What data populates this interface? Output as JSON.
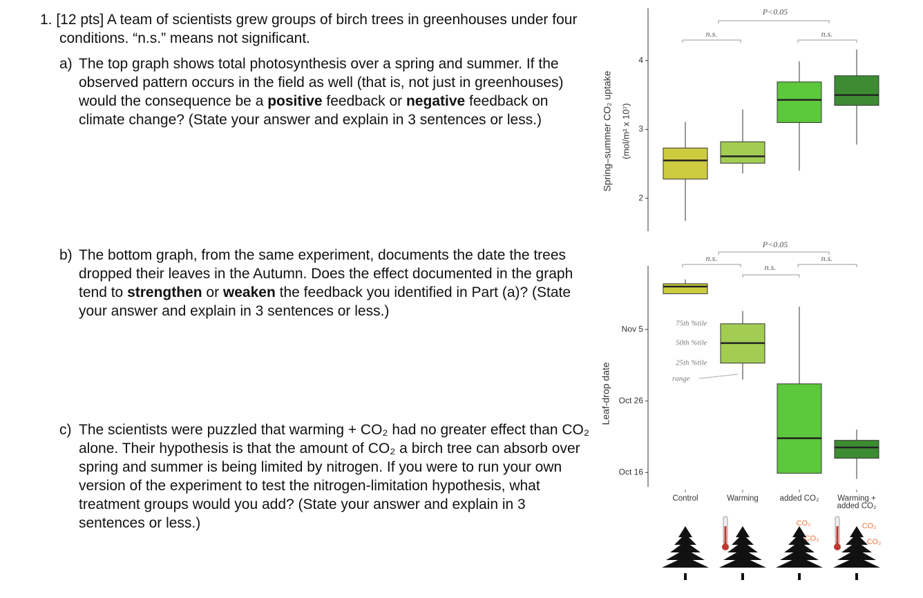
{
  "question": {
    "intro": "1. [12 pts] A team of scientists grew groups of birch trees in greenhouses under four conditions. “n.s.” means not significant.",
    "parts": [
      {
        "label": "a)",
        "segments": [
          {
            "text": "The top graph shows total photosynthesis over a spring and summer. If the observed pattern occurs in the field as well (that is, not just in greenhouses) would the consequence be a "
          },
          {
            "text": "positive",
            "bold": true
          },
          {
            "text": " feedback or "
          },
          {
            "text": "negative",
            "bold": true
          },
          {
            "text": " feedback on climate change? (State your answer and explain in 3 sentences or less.)"
          }
        ]
      },
      {
        "label": "b)",
        "segments": [
          {
            "text": "The bottom graph, from the same experiment, documents the date the trees dropped their leaves in the Autumn. Does the effect documented in the graph tend to "
          },
          {
            "text": "strengthen",
            "bold": true
          },
          {
            "text": " or "
          },
          {
            "text": "weaken",
            "bold": true
          },
          {
            "text": " the feedback you identified in Part (a)? (State your answer and explain in 3 sentences or less.)"
          }
        ]
      },
      {
        "label": "c)",
        "segments": [
          {
            "text": "The scientists were puzzled that warming + CO₂ had no greater effect than CO₂ alone. Their hypothesis is that the amount of CO₂ a birch tree can absorb over spring and summer is being limited by nitrogen. If you were to run your own version of the experiment to test the nitrogen-limitation hypothesis, what treatment groups would you add? (State your answer and explain in 3 sentences or less.)"
          }
        ]
      }
    ]
  },
  "chart_data": [
    {
      "type": "box",
      "ylabel": "Spring–summer CO₂ uptake",
      "ylabel2": "(mol/m² x 10⁷)",
      "ylim": [
        1.52,
        4.76
      ],
      "yticks": [
        2,
        3,
        4
      ],
      "colors": [
        "#cdcc3f",
        "#a3cc52",
        "#5cc83c",
        "#3d8c32"
      ],
      "boxes": [
        {
          "min": 1.67,
          "q1": 2.28,
          "median": 2.55,
          "q3": 2.73,
          "max": 3.11
        },
        {
          "min": 2.36,
          "q1": 2.51,
          "median": 2.61,
          "q3": 2.82,
          "max": 3.29
        },
        {
          "min": 2.4,
          "q1": 3.1,
          "median": 3.43,
          "q3": 3.69,
          "max": 3.99
        },
        {
          "min": 2.78,
          "q1": 3.35,
          "median": 3.5,
          "q3": 3.78,
          "max": 4.16
        }
      ],
      "annotations": [
        "P<0.05",
        "n.s.",
        "n.s."
      ]
    },
    {
      "type": "box",
      "ylabel": "Leaf-drop date",
      "ylim": [
        287.0,
        317.9
      ],
      "yticks": [
        {
          "value": 289,
          "label": "Oct 16"
        },
        {
          "value": 299,
          "label": "Oct 26"
        },
        {
          "value": 309,
          "label": "Nov 5"
        }
      ],
      "colors": [
        "#cdcc3f",
        "#a3cc52",
        "#5cc83c",
        "#3d8c32"
      ],
      "categories": [
        "Control",
        "Warming",
        "added CO₂",
        "Warming +\nadded CO₂"
      ],
      "boxes": [
        {
          "min": 314.0,
          "q1": 314.0,
          "median": 315.0,
          "q3": 315.4,
          "max": 316.0
        },
        {
          "min": 302.0,
          "q1": 304.3,
          "median": 307.1,
          "q3": 309.8,
          "max": 311.6
        },
        {
          "min": 288.9,
          "q1": 288.9,
          "median": 293.8,
          "q3": 301.4,
          "max": 312.2
        },
        {
          "min": 288.1,
          "q1": 291.0,
          "median": 292.5,
          "q3": 293.5,
          "max": 295.0
        }
      ],
      "annotations": [
        "P<0.05",
        "n.s.",
        "n.s.",
        "n.s."
      ],
      "box_labels": [
        "75th %tile",
        "50th %tile",
        "25th %tile",
        "range"
      ],
      "icon_labels": [
        "CO₂",
        "CO₂",
        "CO₂",
        "CO₂"
      ]
    }
  ]
}
